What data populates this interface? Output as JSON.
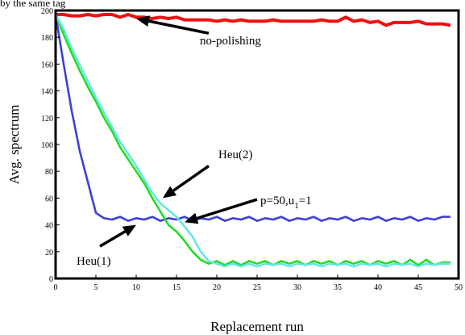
{
  "top_note": "by the same tag",
  "chart_data": {
    "type": "line",
    "title": "",
    "xlabel": "Replacement run",
    "ylabel": "Avg. spectrum",
    "xlim": [
      0,
      50
    ],
    "ylim": [
      0,
      200
    ],
    "xticks": [
      0,
      5,
      10,
      15,
      20,
      25,
      30,
      35,
      40,
      45,
      50
    ],
    "yticks": [
      0,
      20,
      40,
      60,
      80,
      100,
      120,
      140,
      160,
      180,
      200
    ],
    "grid": false,
    "series": [
      {
        "name": "no-polishing",
        "color": "#ee1111",
        "x": [
          0,
          1,
          2,
          3,
          4,
          5,
          6,
          7,
          8,
          9,
          10,
          11,
          12,
          13,
          14,
          15,
          16,
          17,
          18,
          19,
          20,
          21,
          22,
          23,
          24,
          25,
          26,
          27,
          28,
          29,
          30,
          31,
          32,
          33,
          34,
          35,
          36,
          37,
          38,
          39,
          40,
          41,
          42,
          43,
          44,
          45,
          46,
          47,
          48,
          49
        ],
        "y": [
          197,
          197,
          196,
          196,
          197,
          196,
          197,
          197,
          195,
          197,
          195,
          195,
          194,
          195,
          194,
          195,
          193,
          193,
          193,
          193,
          192,
          193,
          192,
          193,
          192,
          192,
          192,
          193,
          192,
          192,
          192,
          192,
          192,
          193,
          192,
          192,
          195,
          192,
          193,
          191,
          192,
          189,
          191,
          191,
          191,
          192,
          190,
          190,
          190,
          189
        ]
      },
      {
        "name": "Heu(1)",
        "color": "#3f3fd9",
        "x": [
          0,
          1,
          2,
          3,
          4,
          5,
          6,
          7,
          8,
          9,
          10,
          11,
          12,
          13,
          14,
          15,
          16,
          17,
          18,
          19,
          20,
          21,
          22,
          23,
          24,
          25,
          26,
          27,
          28,
          29,
          30,
          31,
          32,
          33,
          34,
          35,
          36,
          37,
          38,
          39,
          40,
          41,
          42,
          43,
          44,
          45,
          46,
          47,
          48,
          49
        ],
        "y": [
          197,
          160,
          125,
          95,
          72,
          49,
          45,
          44,
          46,
          43,
          45,
          44,
          46,
          43,
          45,
          44,
          46,
          43,
          45,
          44,
          46,
          43,
          45,
          44,
          46,
          43,
          45,
          44,
          46,
          43,
          45,
          44,
          46,
          43,
          45,
          44,
          46,
          43,
          45,
          44,
          46,
          43,
          45,
          44,
          46,
          43,
          45,
          44,
          46,
          46
        ]
      },
      {
        "name": "p=50,u1=1",
        "color": "#22dd22",
        "x": [
          0,
          1,
          2,
          3,
          4,
          5,
          6,
          7,
          8,
          9,
          10,
          11,
          12,
          13,
          14,
          15,
          16,
          17,
          18,
          19,
          20,
          21,
          22,
          23,
          24,
          25,
          26,
          27,
          28,
          29,
          30,
          31,
          32,
          33,
          34,
          35,
          36,
          37,
          38,
          39,
          40,
          41,
          42,
          43,
          44,
          45,
          46,
          47,
          48,
          49
        ],
        "y": [
          197,
          182,
          168,
          155,
          143,
          132,
          120,
          110,
          98,
          89,
          80,
          71,
          60,
          50,
          40,
          35,
          28,
          20,
          14,
          11,
          13,
          10,
          13,
          10,
          13,
          11,
          13,
          10,
          13,
          11,
          13,
          10,
          13,
          11,
          13,
          10,
          13,
          11,
          13,
          10,
          13,
          11,
          13,
          10,
          14,
          10,
          14,
          10,
          12,
          12
        ]
      },
      {
        "name": "Heu(2)",
        "color": "#66e6e6",
        "x": [
          0,
          1,
          2,
          3,
          4,
          5,
          6,
          7,
          8,
          9,
          10,
          11,
          12,
          13,
          14,
          15,
          16,
          17,
          18,
          19,
          20,
          21,
          22,
          23,
          24,
          25,
          26,
          27,
          28,
          29,
          30,
          31,
          32,
          33,
          34,
          35,
          36,
          37,
          38,
          39,
          40,
          41,
          42,
          43,
          44,
          45,
          46,
          47,
          48,
          49
        ],
        "y": [
          197,
          186,
          172,
          159,
          147,
          135,
          124,
          113,
          102,
          93,
          84,
          74,
          64,
          56,
          51,
          46,
          39,
          31,
          20,
          13,
          11,
          9,
          11,
          9,
          11,
          9,
          11,
          10,
          11,
          9,
          11,
          10,
          11,
          9,
          11,
          10,
          11,
          9,
          11,
          10,
          11,
          9,
          11,
          10,
          11,
          9,
          11,
          10,
          11,
          11
        ]
      }
    ],
    "annotations": [
      {
        "text": "no-polishing",
        "arrow_from": [
          19,
          183
        ],
        "arrow_to": [
          10,
          194
        ]
      },
      {
        "text": "Heu(2)",
        "arrow_from": [
          19,
          84
        ],
        "arrow_to": [
          13.3,
          60
        ]
      },
      {
        "text": "p=50,u",
        "subscript": "1",
        "suffix": "=1",
        "arrow_from": [
          25,
          59
        ],
        "arrow_to": [
          16,
          42
        ]
      },
      {
        "text": "Heu(1)",
        "arrow_from": [
          5.5,
          24
        ],
        "arrow_to": [
          10,
          40
        ]
      }
    ]
  }
}
